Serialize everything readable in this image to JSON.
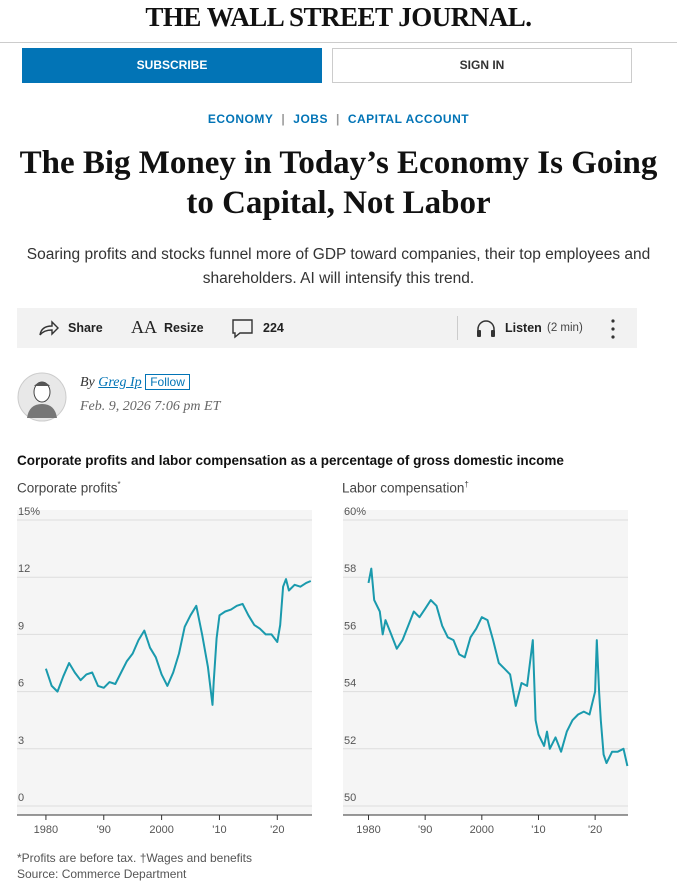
{
  "header": {
    "masthead": "THE WALL STREET JOURNAL.",
    "subscribe": "SUBSCRIBE",
    "sign_in": "SIGN IN"
  },
  "article": {
    "sections": [
      "ECONOMY",
      "JOBS",
      "CAPITAL ACCOUNT"
    ],
    "headline": "The Big Money in Today’s Economy Is Going to Capital, Not Labor",
    "dek": "Soaring profits and stocks funnel more of GDP toward companies, their top employees and shareholders. AI will intensify this trend.",
    "toolbar": {
      "share": "Share",
      "resize": "Resize",
      "comments": "224",
      "listen": "Listen",
      "duration": "(2 min)"
    },
    "byline": {
      "by": "By",
      "author": "Greg Ip",
      "follow": "Follow",
      "date": "Feb. 9, 2026 7:06 pm ET"
    },
    "graphic_title": "Corporate profits and labor compensation as a percentage of gross domestic income",
    "footnote": "*Profits are before tax. †Wages and benefits",
    "source": "Source: Commerce Department"
  },
  "chart_data": [
    {
      "type": "line",
      "title": "Corporate profits",
      "marker": "*",
      "color": "#1a9aad",
      "x": [
        1980,
        1981,
        1982,
        1983,
        1984,
        1985,
        1986,
        1987,
        1988,
        1989,
        1990,
        1991,
        1992,
        1993,
        1994,
        1995,
        1996,
        1997,
        1998,
        1999,
        2000,
        2001,
        2002,
        2003,
        2004,
        2005,
        2006,
        2007,
        2008,
        2008.8,
        2009,
        2009.5,
        2010,
        2011,
        2012,
        2013,
        2014,
        2015,
        2016,
        2017,
        2018,
        2019,
        2020,
        2020.5,
        2021,
        2021.5,
        2022,
        2023,
        2024,
        2025,
        2025.8
      ],
      "values": [
        7.2,
        6.3,
        6.0,
        6.8,
        7.5,
        7.0,
        6.6,
        6.9,
        7.0,
        6.3,
        6.2,
        6.5,
        6.4,
        7.0,
        7.6,
        8.0,
        8.7,
        9.2,
        8.3,
        7.8,
        6.9,
        6.3,
        7.0,
        8.0,
        9.4,
        10.0,
        10.5,
        9.0,
        7.3,
        5.3,
        6.5,
        8.8,
        10.0,
        10.2,
        10.3,
        10.5,
        10.6,
        10.0,
        9.5,
        9.3,
        9.0,
        9.0,
        8.6,
        9.5,
        11.5,
        11.9,
        11.3,
        11.6,
        11.5,
        11.7,
        11.8
      ],
      "xlim": [
        1975,
        2026
      ],
      "ylim": [
        0,
        15
      ],
      "xticks": [
        {
          "value": 1980,
          "label": "1980"
        },
        {
          "value": 1990,
          "label": "'90"
        },
        {
          "value": 2000,
          "label": "2000"
        },
        {
          "value": 2010,
          "label": "'10"
        },
        {
          "value": 2020,
          "label": "'20"
        }
      ],
      "yticks": [
        0,
        3,
        6,
        9,
        12,
        {
          "value": 15,
          "label": "15%"
        }
      ],
      "grid": true
    },
    {
      "type": "line",
      "title": "Labor compensation",
      "marker": "†",
      "color": "#1a9aad",
      "x": [
        1980,
        1980.5,
        1981,
        1982,
        1982.5,
        1983,
        1984,
        1985,
        1986,
        1987,
        1988,
        1989,
        1990,
        1991,
        1992,
        1993,
        1994,
        1995,
        1996,
        1997,
        1998,
        1999,
        2000,
        2001,
        2002,
        2003,
        2004,
        2005,
        2006,
        2007,
        2008,
        2009,
        2009.5,
        2010,
        2011,
        2011.5,
        2012,
        2013,
        2014,
        2015,
        2016,
        2017,
        2018,
        2019,
        2020,
        2020.3,
        2020.7,
        2021,
        2021.5,
        2022,
        2023,
        2024,
        2025,
        2025.7
      ],
      "values": [
        57.8,
        58.3,
        57.2,
        56.8,
        56.0,
        56.5,
        56.0,
        55.5,
        55.8,
        56.3,
        56.8,
        56.6,
        56.9,
        57.2,
        57.0,
        56.3,
        55.9,
        55.8,
        55.3,
        55.2,
        55.9,
        56.2,
        56.6,
        56.5,
        55.8,
        55.0,
        54.8,
        54.6,
        53.5,
        54.3,
        54.2,
        55.8,
        53.0,
        52.5,
        52.1,
        52.6,
        52.0,
        52.4,
        51.9,
        52.6,
        53.0,
        53.2,
        53.3,
        53.2,
        54.0,
        55.8,
        54.0,
        53.0,
        51.8,
        51.5,
        51.9,
        51.9,
        52.0,
        51.4
      ],
      "xlim": [
        1975.5,
        2025.8
      ],
      "ylim": [
        50,
        60
      ],
      "xticks": [
        {
          "value": 1980,
          "label": "1980"
        },
        {
          "value": 1990,
          "label": "'90"
        },
        {
          "value": 2000,
          "label": "2000"
        },
        {
          "value": 2010,
          "label": "'10"
        },
        {
          "value": 2020,
          "label": "'20"
        }
      ],
      "yticks": [
        50,
        52,
        54,
        56,
        58,
        {
          "value": 60,
          "label": "60%"
        }
      ],
      "grid": true
    }
  ]
}
